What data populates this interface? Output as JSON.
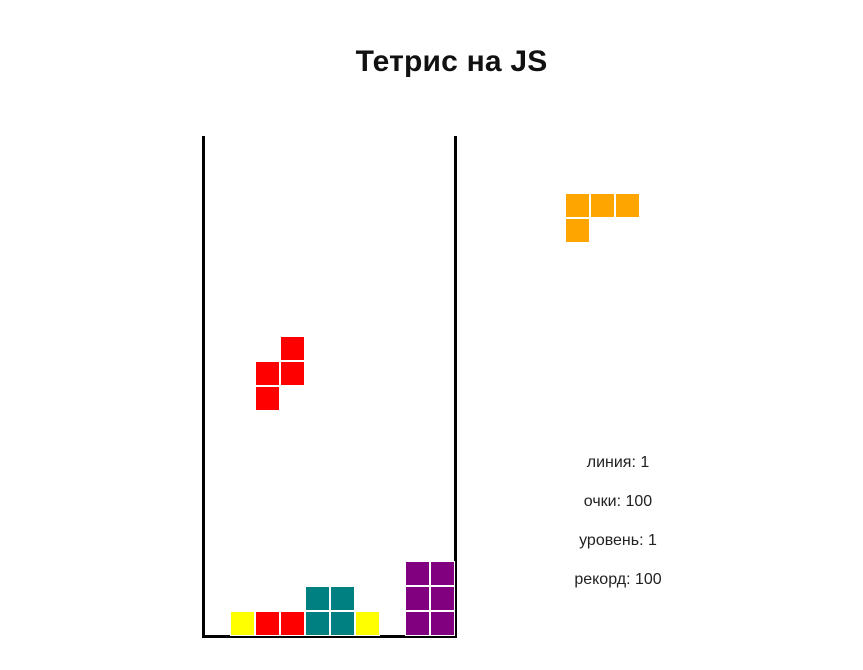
{
  "header": {
    "title": "Тетрис на JS"
  },
  "colors": {
    "red": "#ff0000",
    "yellow": "#ffff00",
    "teal": "#008080",
    "purple": "#800080",
    "orange": "#ffa500"
  },
  "board": {
    "cols": 10,
    "rows": 20,
    "active_piece": {
      "shape": "S",
      "color": "red",
      "cells": [
        [
          3,
          8
        ],
        [
          2,
          9
        ],
        [
          3,
          9
        ],
        [
          2,
          10
        ]
      ]
    },
    "stack": [
      {
        "c": 1,
        "r": 19,
        "color": "yellow"
      },
      {
        "c": 2,
        "r": 19,
        "color": "red"
      },
      {
        "c": 3,
        "r": 19,
        "color": "red"
      },
      {
        "c": 4,
        "r": 18,
        "color": "teal"
      },
      {
        "c": 5,
        "r": 18,
        "color": "teal"
      },
      {
        "c": 4,
        "r": 19,
        "color": "teal"
      },
      {
        "c": 5,
        "r": 19,
        "color": "teal"
      },
      {
        "c": 6,
        "r": 19,
        "color": "yellow"
      },
      {
        "c": 8,
        "r": 17,
        "color": "purple"
      },
      {
        "c": 9,
        "r": 17,
        "color": "purple"
      },
      {
        "c": 8,
        "r": 18,
        "color": "purple"
      },
      {
        "c": 9,
        "r": 18,
        "color": "purple"
      },
      {
        "c": 8,
        "r": 19,
        "color": "purple"
      },
      {
        "c": 9,
        "r": 19,
        "color": "purple"
      }
    ]
  },
  "next_piece": {
    "shape": "L",
    "color": "orange",
    "cells": [
      [
        0,
        0
      ],
      [
        1,
        0
      ],
      [
        2,
        0
      ],
      [
        0,
        1
      ]
    ]
  },
  "stats": {
    "lines": "линия: 1",
    "score": "очки: 100",
    "level": "уровень: 1",
    "record": "рекорд: 100"
  }
}
